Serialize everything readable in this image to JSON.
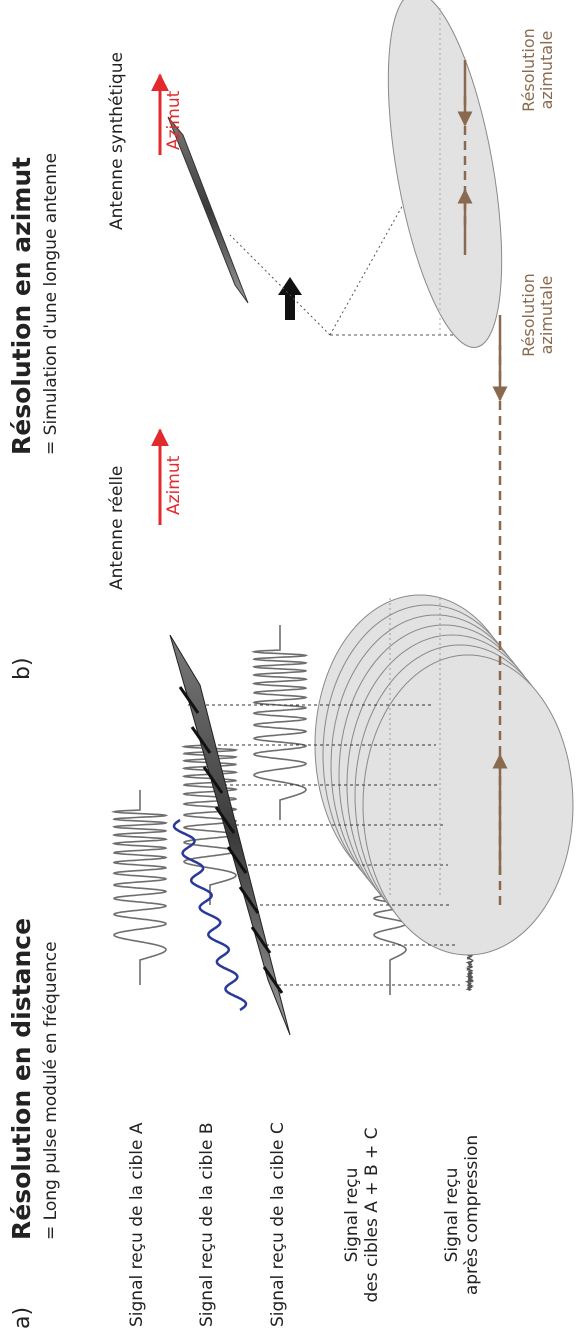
{
  "panel_a": {
    "label": "a)",
    "title": "Résolution en distance",
    "subtitle": "= Long pulse modulé en fréquence",
    "signal_a": "Signal reçu de la cible A",
    "signal_b": "Signal reçu de la cible B",
    "signal_c": "Signal reçu de la cible C",
    "signal_sum_1": "Signal reçu",
    "signal_sum_2": "des cibles A + B + C",
    "signal_comp_1": "Signal reçu",
    "signal_comp_2": "après compression"
  },
  "panel_b": {
    "label": "b)",
    "title": "Résolution en azimut",
    "subtitle": "= Simulation d'une longue antenne",
    "real_antenna": "Antenne réelle",
    "synthetic_antenna": "Antenne synthétique",
    "azimuth_1": "Azimut",
    "azimuth_2": "Azimut",
    "res_1_line1": "Résolution",
    "res_1_line2": "azimutale",
    "res_2_line1": "Résolution",
    "res_2_line2": "azimutale"
  },
  "colors": {
    "azimuth_red": "#e2292d",
    "resolution_brown": "#8a6a4f",
    "pulse_blue": "#2a3a9a",
    "ellipse_fill": "#e2e2e2",
    "signal_gray": "#6e6e6e"
  }
}
